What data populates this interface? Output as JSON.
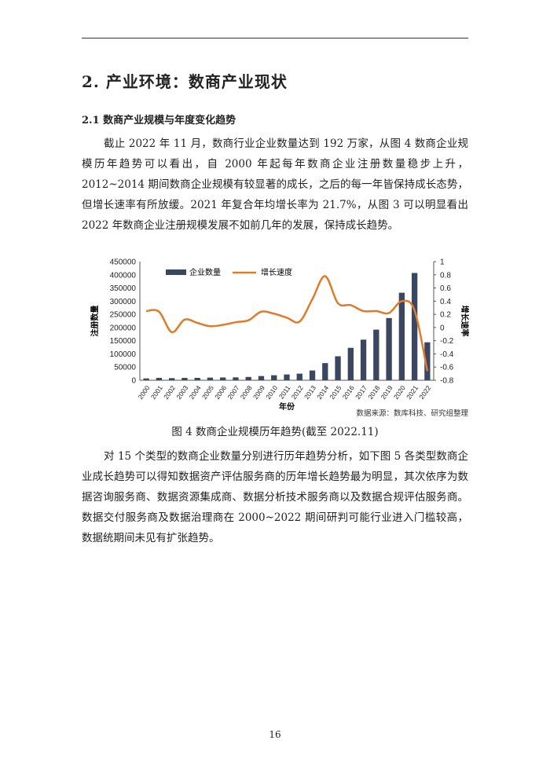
{
  "section_title": "2. 产业环境：数商产业现状",
  "subsection_title": "2.1  数商产业规模与年度变化趋势",
  "paragraph1": "截止 2022 年 11 月，数商行业企业数量达到 192 万家，从图 4 数商企业规模历年趋势可以看出，自 2000 年起每年数商企业注册数量稳步上升，2012~2014 期间数商企业规模有较显著的成长，之后的每一年皆保持成长态势，但增长速率有所放缓。2021 年复合年均增长率为 21.7%，从图 3 可以明显看出 2022 年数商企业注册规模发展不如前几年的发展，保持成长趋势。",
  "figure_caption": "图 4  数商企业规模历年趋势(截至 2022.11)",
  "paragraph2": "对 15 个类型的数商企业数量分别进行历年趋势分析，如下图 5 各类型数商企业成长趋势可以得知数据资产评估服务商的历年增长趋势最为明显，其次依序为数据咨询服务商、数据资源集成商、数据分析技术服务商以及数据合规评估服务商。数据交付服务商及数据治理商在 2000~2022 期间研判可能行业进入门槛较高，数据统期间未见有扩张趋势。",
  "page_number": "16",
  "chart_data": {
    "type": "bar+line",
    "categories": [
      "2000",
      "2001",
      "2002",
      "2003",
      "2004",
      "2005",
      "2006",
      "2007",
      "2008",
      "2009",
      "2010",
      "2011",
      "2012",
      "2013",
      "2014",
      "2015",
      "2016",
      "2017",
      "2018",
      "2019",
      "2020",
      "2021",
      "2022"
    ],
    "series": [
      {
        "name": "企业数量",
        "type": "bar",
        "axis": "left",
        "color": "#3b4660",
        "values": [
          7000,
          9000,
          8000,
          9000,
          9000,
          10000,
          10500,
          11000,
          12500,
          16000,
          19000,
          22000,
          25000,
          37000,
          65000,
          91000,
          123000,
          154000,
          192000,
          236000,
          332000,
          407000,
          144000
        ]
      },
      {
        "name": "增长速度",
        "type": "line",
        "axis": "right",
        "color": "#e07b2a",
        "values": [
          0.25,
          0.24,
          -0.07,
          0.12,
          0.07,
          0.02,
          0.04,
          0.08,
          0.11,
          0.24,
          0.21,
          0.15,
          0.09,
          0.43,
          0.78,
          0.37,
          0.34,
          0.25,
          0.25,
          0.22,
          0.4,
          0.26,
          -0.66
        ]
      }
    ],
    "xlabel": "年份",
    "ylabel": "注册数量",
    "y2label": "增长速率",
    "ylim": [
      0,
      450000
    ],
    "y2lim": [
      -0.8,
      1
    ],
    "yticks": [
      "0",
      "50000",
      "100000",
      "150000",
      "200000",
      "250000",
      "300000",
      "350000",
      "400000",
      "450000"
    ],
    "y2ticks": [
      "-0.8",
      "-0.6",
      "-0.4",
      "-0.2",
      "0",
      "0.2",
      "0.4",
      "0.6",
      "0.8",
      "1"
    ],
    "legend": "top",
    "grid": false,
    "source": "数据来源：数库科技、研究组整理"
  }
}
